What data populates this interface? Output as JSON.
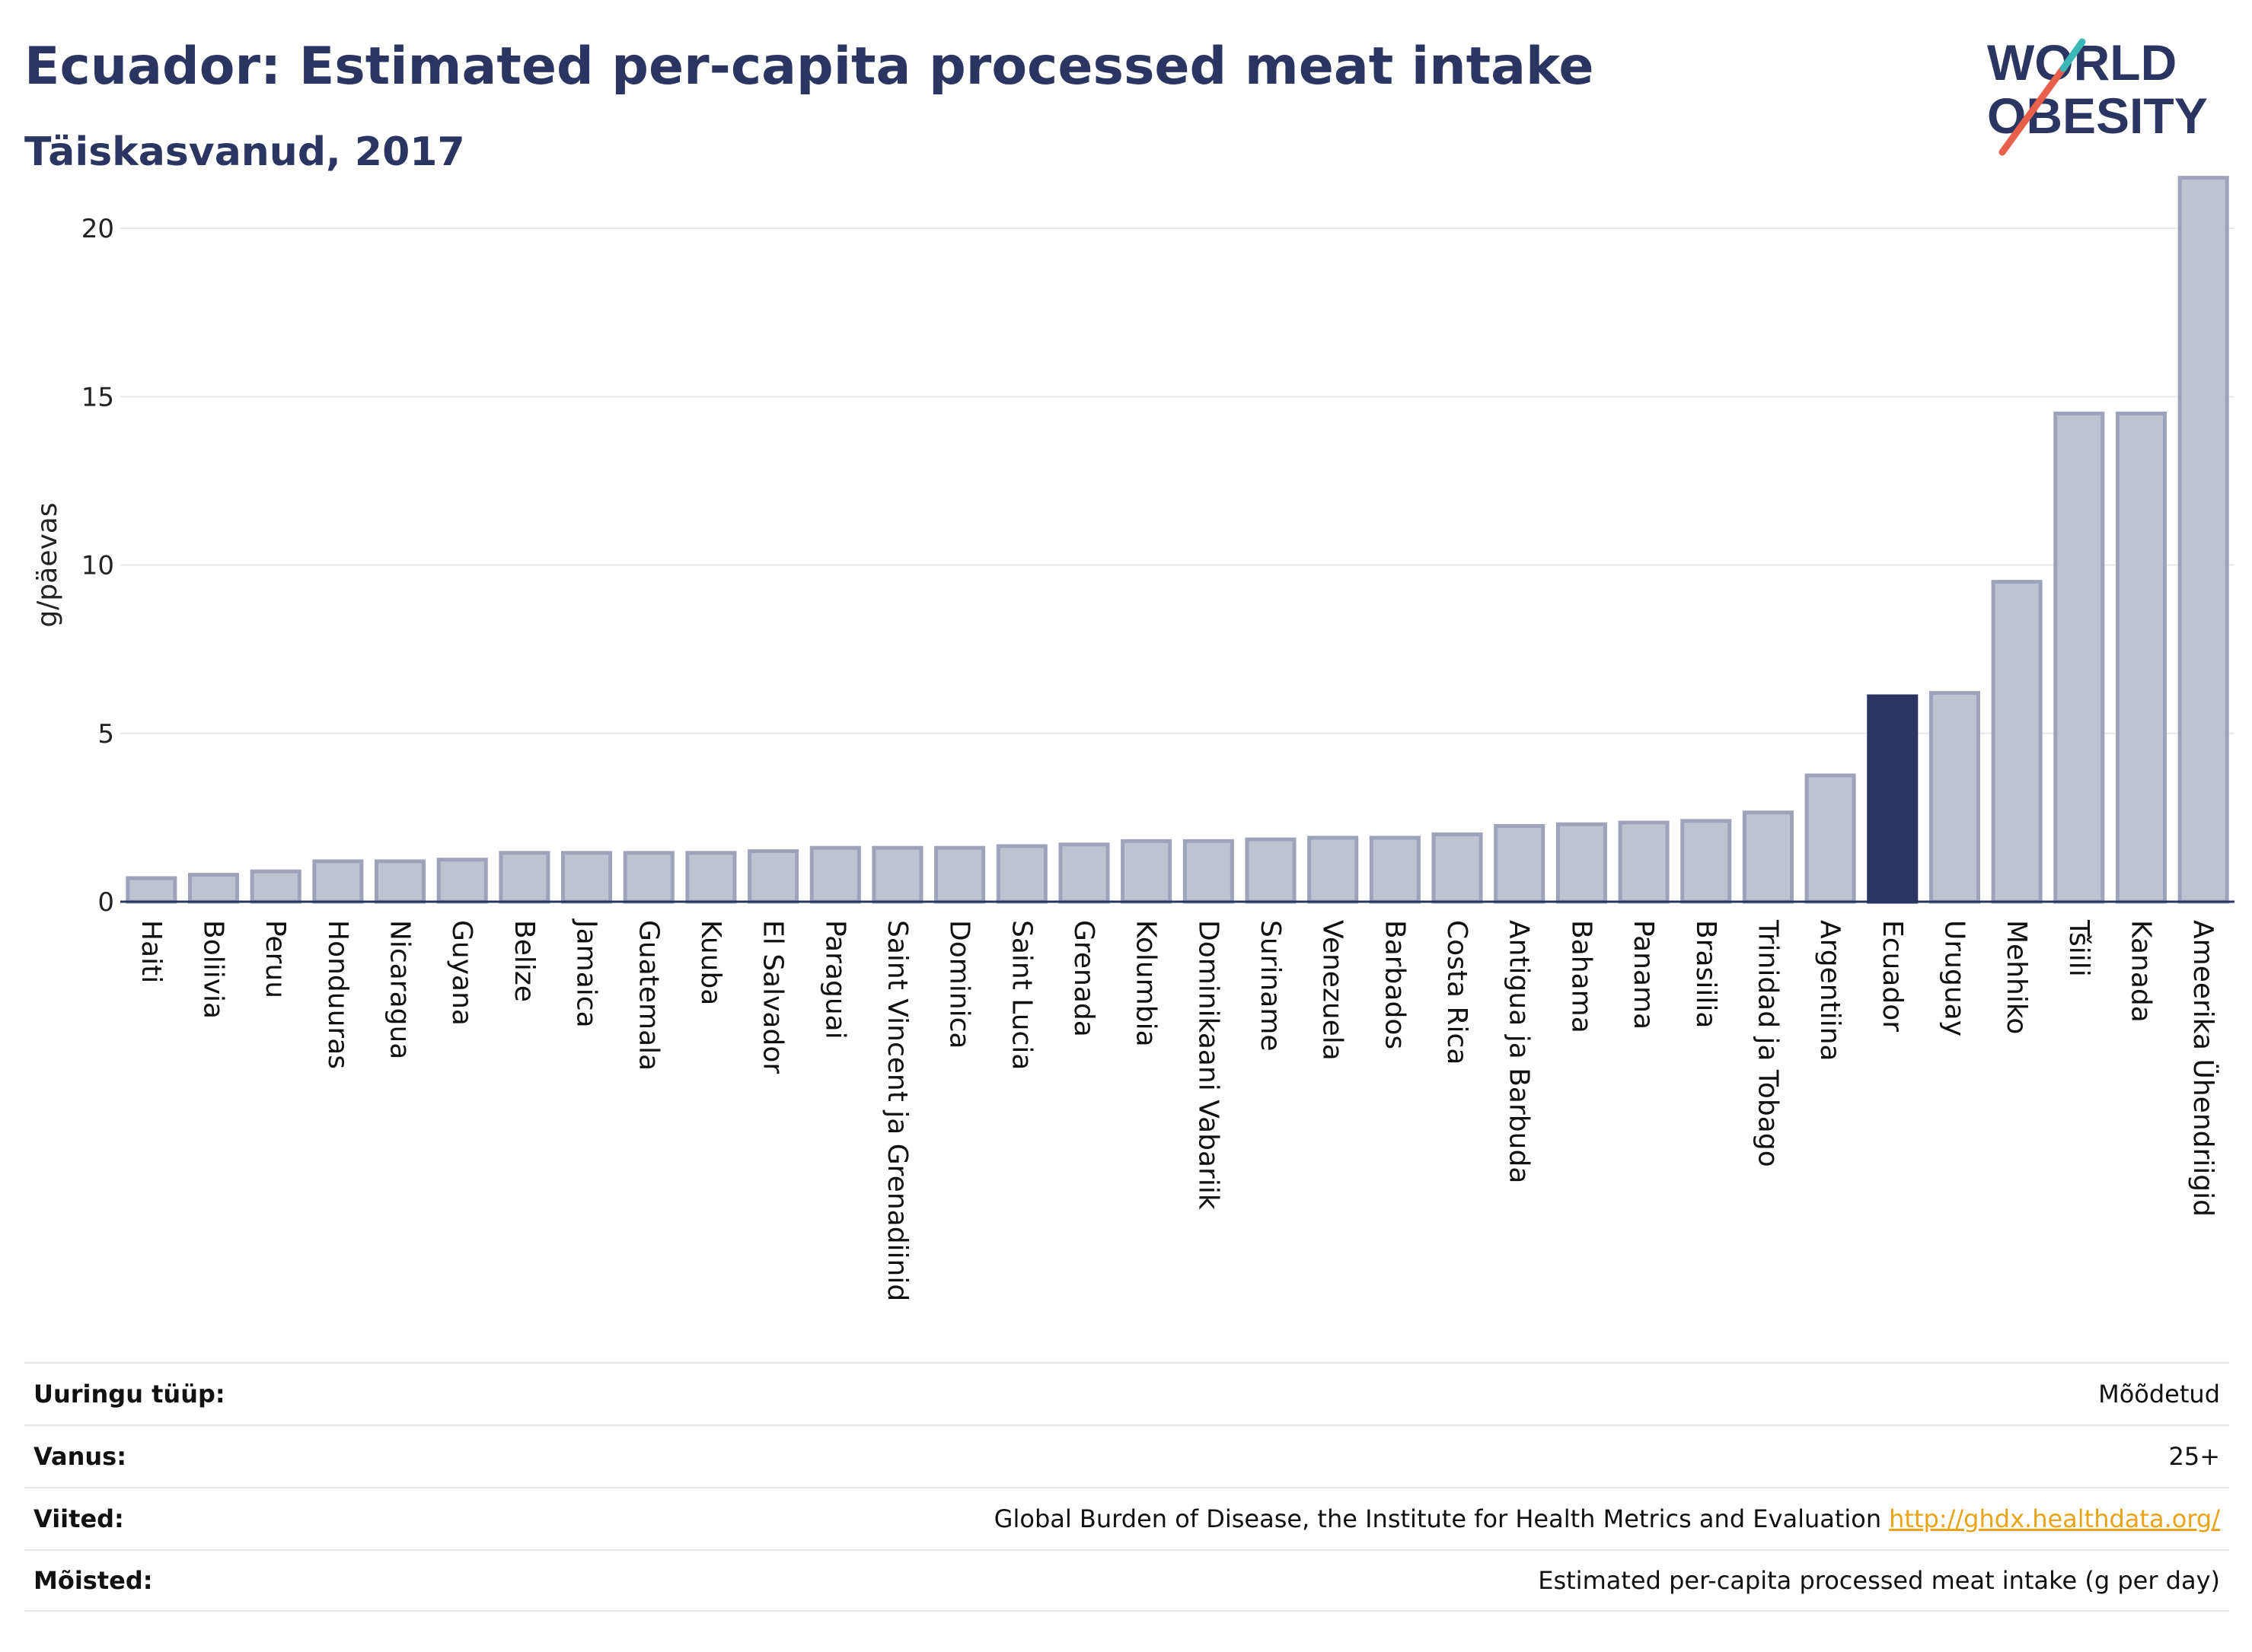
{
  "header": {
    "title": "Ecuador: Estimated per-capita processed meat intake",
    "subtitle": "Täiskasvanud, 2017"
  },
  "logo": {
    "line1": "WORLD",
    "line2": "OBESITY",
    "colors": {
      "text": "#2b3561",
      "slash_red": "#e8604c",
      "slash_teal": "#3bb7b7"
    }
  },
  "colors": {
    "bar": "#bfc3d1",
    "bar_stroke": "#9ea3bb",
    "highlight": "#2b3561",
    "grid": "#e8e8e8",
    "axis": "#2b3561"
  },
  "chart_data": {
    "type": "bar",
    "ylabel": "g/päevas",
    "xlabel": "",
    "ylim": [
      0,
      22
    ],
    "yticks": [
      0,
      5,
      10,
      15,
      20
    ],
    "grid": true,
    "highlight": "Ecuador",
    "categories": [
      "Haiti",
      "Boliivia",
      "Peruu",
      "Honduuras",
      "Nicaragua",
      "Guyana",
      "Belize",
      "Jamaica",
      "Guatemala",
      "Kuuba",
      "El Salvador",
      "Paraguai",
      "Saint Vincent ja Grenadiinid",
      "Dominica",
      "Saint Lucia",
      "Grenada",
      "Kolumbia",
      "Dominikaani Vabariik",
      "Suriname",
      "Venezuela",
      "Barbados",
      "Costa Rica",
      "Antigua ja Barbuda",
      "Bahama",
      "Panama",
      "Brasiilia",
      "Trinidad ja Tobago",
      "Argentiina",
      "Ecuador",
      "Uruguay",
      "Mehhiko",
      "Tšiili",
      "Kanada",
      "Ameerika Ühendriigid"
    ],
    "values": [
      0.7,
      0.8,
      0.9,
      1.2,
      1.2,
      1.25,
      1.45,
      1.45,
      1.45,
      1.45,
      1.5,
      1.6,
      1.6,
      1.6,
      1.65,
      1.7,
      1.8,
      1.8,
      1.85,
      1.9,
      1.9,
      2.0,
      2.25,
      2.3,
      2.35,
      2.4,
      2.65,
      3.75,
      6.1,
      6.2,
      9.5,
      14.5,
      14.5,
      21.5
    ]
  },
  "meta": [
    {
      "label": "Uuringu tüüp:",
      "value": "Mõõdetud"
    },
    {
      "label": "Vanus:",
      "value": "25+"
    },
    {
      "label": "Viited:",
      "value": "Global Burden of Disease, the Institute for Health Metrics and Evaluation",
      "link": "http://ghdx.healthdata.org/"
    },
    {
      "label": "Mõisted:",
      "value": "Estimated per-capita processed meat intake (g per day)"
    }
  ]
}
